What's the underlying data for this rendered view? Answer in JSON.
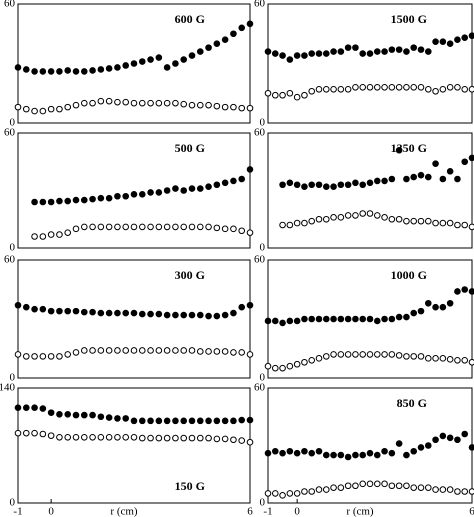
{
  "chart_data": [
    {
      "type": "scatter",
      "title": "600 G",
      "title_position": "top",
      "xlim": [
        -1,
        6
      ],
      "ylim": [
        0,
        60
      ],
      "yticks": [
        0,
        60
      ],
      "x": [
        -1,
        -0.75,
        -0.5,
        -0.25,
        0,
        0.25,
        0.5,
        0.75,
        1,
        1.25,
        1.5,
        1.75,
        2,
        2.25,
        2.5,
        2.75,
        3,
        3.25,
        3.5,
        3.75,
        4,
        4.25,
        4.5,
        4.75,
        5,
        5.25,
        5.5,
        5.75,
        6
      ],
      "series": [
        {
          "color": "#000000",
          "fill": "#000000",
          "values": [
            28,
            27,
            26,
            26,
            26,
            26,
            26.5,
            26,
            26,
            26.5,
            27,
            27.5,
            28,
            29,
            30,
            31,
            32,
            33,
            28,
            30,
            32,
            34,
            36,
            38,
            40,
            42,
            45,
            48,
            50
          ]
        },
        {
          "color": "#000000",
          "fill": "#ffffff",
          "values": [
            8,
            7,
            6,
            6,
            7,
            7,
            8,
            9,
            10,
            10,
            11,
            11,
            10.5,
            10.5,
            10,
            10,
            10,
            10,
            10,
            10,
            9.5,
            9,
            9,
            9,
            8.5,
            8,
            8,
            7.5,
            7.5
          ]
        }
      ]
    },
    {
      "type": "scatter",
      "title": "500 G",
      "title_position": "top",
      "xlim": [
        -1,
        6
      ],
      "ylim": [
        0,
        60
      ],
      "yticks": [
        0,
        60
      ],
      "x": [
        -0.5,
        -0.25,
        0,
        0.25,
        0.5,
        0.75,
        1,
        1.25,
        1.5,
        1.75,
        2,
        2.25,
        2.5,
        2.75,
        3,
        3.25,
        3.5,
        3.75,
        4,
        4.25,
        4.5,
        4.75,
        5,
        5.25,
        5.5,
        5.75,
        6
      ],
      "series": [
        {
          "color": "#000000",
          "fill": "#000000",
          "values": [
            24,
            24,
            24,
            24.5,
            24.5,
            25,
            25,
            25.5,
            26,
            26,
            27,
            27,
            28,
            28,
            29,
            29,
            30,
            31,
            30,
            31,
            31,
            32,
            33,
            34,
            35,
            36,
            41
          ]
        },
        {
          "color": "#000000",
          "fill": "#ffffff",
          "values": [
            6,
            6,
            7,
            7,
            8,
            10,
            11,
            11,
            11,
            11,
            11,
            11,
            11,
            11,
            11,
            11,
            11,
            11,
            11,
            11,
            11,
            11,
            10.5,
            10,
            10,
            9,
            8
          ]
        }
      ]
    },
    {
      "type": "scatter",
      "title": "300 G",
      "title_position": "top",
      "xlim": [
        -1,
        6
      ],
      "ylim": [
        0,
        60
      ],
      "yticks": [
        0,
        60
      ],
      "x": [
        -1,
        -0.75,
        -0.5,
        -0.25,
        0,
        0.25,
        0.5,
        0.75,
        1,
        1.25,
        1.5,
        1.75,
        2,
        2.25,
        2.5,
        2.75,
        3,
        3.25,
        3.5,
        3.75,
        4,
        4.25,
        4.5,
        4.75,
        5,
        5.25,
        5.5,
        5.75,
        6
      ],
      "series": [
        {
          "color": "#000000",
          "fill": "#000000",
          "values": [
            37,
            36,
            35,
            35,
            34,
            34,
            34,
            34,
            33.5,
            33.5,
            33,
            33,
            33,
            33,
            33,
            32.5,
            32.5,
            32.5,
            32,
            32,
            32,
            32,
            32,
            31.5,
            31.5,
            32,
            33,
            36,
            37
          ]
        },
        {
          "color": "#000000",
          "fill": "#ffffff",
          "values": [
            12,
            11,
            11,
            11,
            11,
            11,
            12,
            13,
            14,
            14,
            14,
            14,
            14,
            14,
            14,
            14,
            14,
            14,
            14,
            14,
            14,
            14,
            13.5,
            13.5,
            13.5,
            13.5,
            13,
            13,
            12
          ]
        }
      ]
    },
    {
      "type": "scatter",
      "title": "150 G",
      "title_position": "bottom",
      "xlim": [
        -1,
        6
      ],
      "ylim": [
        0,
        140
      ],
      "yticks": [
        0,
        140
      ],
      "xticks": [
        -1,
        0,
        6
      ],
      "xlabel": "r (cm)",
      "x": [
        -1,
        -0.75,
        -0.5,
        -0.25,
        0,
        0.25,
        0.5,
        0.75,
        1,
        1.25,
        1.5,
        1.75,
        2,
        2.25,
        2.5,
        2.75,
        3,
        3.25,
        3.5,
        3.75,
        4,
        4.25,
        4.5,
        4.75,
        5,
        5.25,
        5.5,
        5.75,
        6
      ],
      "series": [
        {
          "color": "#000000",
          "fill": "#000000",
          "values": [
            116,
            116,
            116,
            115,
            110,
            108,
            108,
            107,
            107,
            107,
            105,
            104,
            103,
            103,
            100,
            100,
            100,
            100,
            100,
            100,
            100,
            100,
            100,
            100,
            100,
            100,
            100,
            101,
            101
          ]
        },
        {
          "color": "#000000",
          "fill": "#ffffff",
          "values": [
            85,
            85,
            85,
            84,
            82,
            80,
            80,
            80,
            80,
            80,
            80,
            80,
            80,
            80,
            80,
            79,
            79,
            79,
            79,
            79,
            79,
            79,
            79,
            79,
            78,
            78,
            77,
            76,
            74
          ]
        }
      ]
    },
    {
      "type": "scatter",
      "title": "1500 G",
      "title_position": "top",
      "xlim": [
        -1,
        6
      ],
      "ylim": [
        0,
        60
      ],
      "yticks": [
        0,
        60
      ],
      "x": [
        -1,
        -0.75,
        -0.5,
        -0.25,
        0,
        0.25,
        0.5,
        0.75,
        1,
        1.25,
        1.5,
        1.75,
        2,
        2.25,
        2.5,
        2.75,
        3,
        3.25,
        3.5,
        3.75,
        4,
        4.25,
        4.5,
        4.75,
        5,
        5.25,
        5.5,
        5.75,
        6
      ],
      "series": [
        {
          "color": "#000000",
          "fill": "#000000",
          "values": [
            36,
            35,
            34,
            32,
            34,
            34,
            35,
            35,
            35,
            36,
            36,
            38,
            38,
            35,
            35,
            36,
            36,
            37,
            37,
            36,
            38,
            37,
            36,
            41,
            41,
            40,
            42,
            43,
            44
          ]
        },
        {
          "color": "#000000",
          "fill": "#ffffff",
          "values": [
            15,
            14,
            14,
            15,
            13,
            14,
            16,
            17,
            17,
            17,
            17,
            17,
            18,
            18,
            18,
            18,
            18,
            18,
            18,
            18,
            18,
            18,
            17,
            16,
            17,
            18,
            18,
            17,
            17
          ]
        }
      ]
    },
    {
      "type": "scatter",
      "title": "1350 G",
      "title_position": "top",
      "xlim": [
        -1,
        6
      ],
      "ylim": [
        0,
        60
      ],
      "yticks": [
        0,
        60
      ],
      "x": [
        -0.5,
        -0.25,
        0,
        0.25,
        0.5,
        0.75,
        1,
        1.25,
        1.5,
        1.75,
        2,
        2.25,
        2.5,
        2.75,
        3,
        3.25,
        3.5,
        3.75,
        4,
        4.25,
        4.5,
        4.75,
        5,
        5.25,
        5.5,
        5.75,
        6
      ],
      "series": [
        {
          "color": "#000000",
          "fill": "#000000",
          "values": [
            33,
            34,
            33,
            32,
            33,
            33,
            32,
            32,
            33,
            33,
            34,
            33,
            34,
            35,
            35,
            36,
            51,
            36,
            37,
            38,
            37,
            44,
            36,
            40,
            36,
            45,
            47
          ]
        },
        {
          "color": "#000000",
          "fill": "#ffffff",
          "values": [
            12,
            12,
            13,
            13,
            14,
            15,
            15,
            16,
            16,
            17,
            17,
            18,
            18,
            17,
            16,
            15,
            15,
            14,
            14,
            14,
            14,
            13,
            13,
            13,
            12,
            12,
            11
          ]
        }
      ]
    },
    {
      "type": "scatter",
      "title": "1000 G",
      "title_position": "top",
      "xlim": [
        -1,
        6
      ],
      "ylim": [
        0,
        60
      ],
      "yticks": [
        0,
        60
      ],
      "x": [
        -1,
        -0.75,
        -0.5,
        -0.25,
        0,
        0.25,
        0.5,
        0.75,
        1,
        1.25,
        1.5,
        1.75,
        2,
        2.25,
        2.5,
        2.75,
        3,
        3.25,
        3.5,
        3.75,
        4,
        4.25,
        4.5,
        4.75,
        5,
        5.25,
        5.5,
        5.75,
        6
      ],
      "series": [
        {
          "color": "#000000",
          "fill": "#000000",
          "values": [
            29,
            29,
            28,
            29,
            29,
            30,
            30,
            30,
            30,
            30,
            30,
            30,
            30,
            30,
            30,
            29,
            30,
            30,
            31,
            31,
            33,
            34,
            38,
            36,
            36,
            38,
            44,
            45,
            44
          ]
        },
        {
          "color": "#000000",
          "fill": "#ffffff",
          "values": [
            6,
            5,
            5,
            6,
            7,
            8,
            9,
            10,
            11,
            12,
            12,
            12,
            12,
            12,
            12,
            12,
            12,
            12,
            11.5,
            11,
            11,
            11,
            10,
            10,
            10,
            9.5,
            9,
            9,
            8
          ]
        }
      ]
    },
    {
      "type": "scatter",
      "title": "850 G",
      "title_position": "top",
      "xlim": [
        -1,
        6
      ],
      "ylim": [
        0,
        60
      ],
      "yticks": [
        0,
        60
      ],
      "xticks": [
        -1,
        0,
        6
      ],
      "xlabel": "r (cm)",
      "x": [
        -1,
        -0.75,
        -0.5,
        -0.25,
        0,
        0.25,
        0.5,
        0.75,
        1,
        1.25,
        1.5,
        1.75,
        2,
        2.25,
        2.5,
        2.75,
        3,
        3.25,
        3.5,
        3.75,
        4,
        4.25,
        4.5,
        4.75,
        5,
        5.25,
        5.5,
        5.75,
        6
      ],
      "series": [
        {
          "color": "#000000",
          "fill": "#000000",
          "values": [
            26,
            27,
            26,
            27,
            26,
            27,
            26,
            27,
            25,
            25,
            25,
            24,
            25,
            25,
            26,
            25,
            27,
            26,
            31,
            25,
            27,
            29,
            30,
            33,
            35,
            34,
            33,
            36,
            29
          ]
        },
        {
          "color": "#000000",
          "fill": "#ffffff",
          "values": [
            5,
            5,
            4,
            5,
            5,
            6,
            6,
            7,
            7,
            8,
            8,
            9,
            9,
            10,
            10,
            10,
            10,
            9,
            9,
            9,
            8,
            8,
            8,
            7,
            7,
            7,
            6,
            6,
            6
          ]
        }
      ]
    }
  ]
}
